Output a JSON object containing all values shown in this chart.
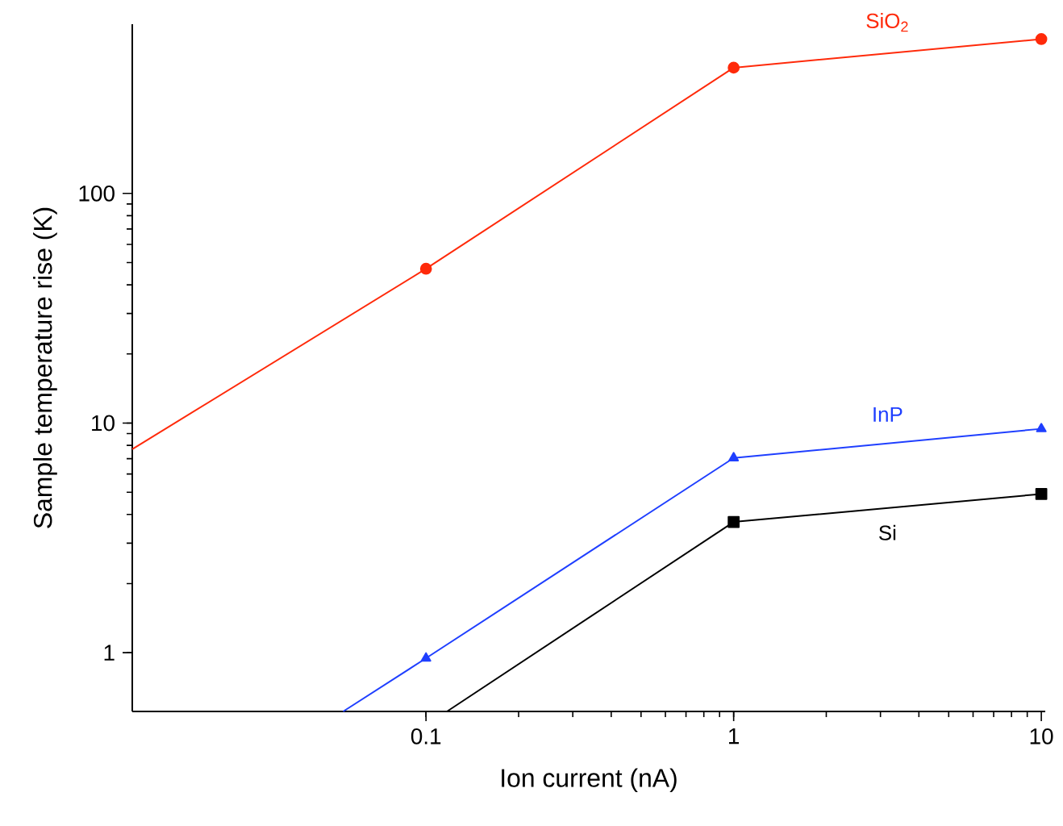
{
  "chart_data": {
    "type": "line",
    "xlabel": "Ion current (nA)",
    "ylabel": "Sample temperature rise (K)",
    "log": "xy",
    "xlim": [
      0.0111,
      10.3
    ],
    "ylim": [
      0.555,
      546
    ],
    "xticks": [
      0.1,
      1,
      10
    ],
    "yticks": [
      1,
      10,
      100
    ],
    "grid": false,
    "legend": false,
    "line_style": "solid",
    "series": [
      {
        "name": "SiO$_{2}$",
        "color": "#ff2a0a",
        "marker": "circle",
        "x": [
          0.0111,
          0.1,
          1,
          10
        ],
        "values": [
          7.7,
          47,
          353,
          470
        ]
      },
      {
        "name": "InP",
        "color": "#1f3fff",
        "marker": "triangle",
        "x": [
          0.0538,
          0.1,
          1,
          10
        ],
        "values": [
          0.555,
          0.946,
          7.05,
          9.44
        ]
      },
      {
        "name": "Si",
        "color": "#000000",
        "marker": "square",
        "x": [
          0.117,
          1,
          10
        ],
        "values": [
          0.555,
          3.71,
          4.91
        ]
      }
    ]
  }
}
